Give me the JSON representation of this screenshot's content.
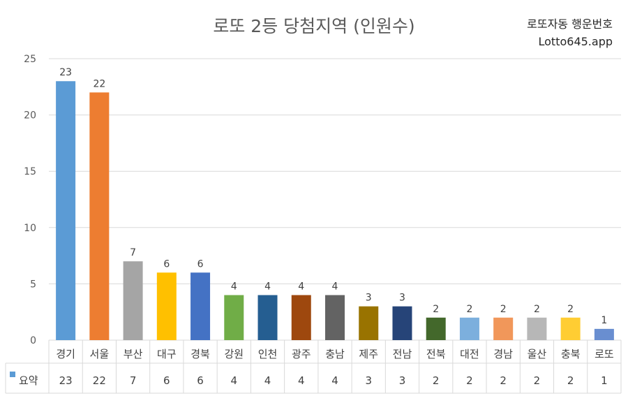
{
  "watermark": {
    "line1": "로또자동 행운번호",
    "line2": "Lotto645.app"
  },
  "chart_data": {
    "type": "bar",
    "title": "로또 2등 당첨지역 (인원수)",
    "xlabel": "",
    "ylabel": "",
    "ylim": [
      0,
      25
    ],
    "yticks": [
      0,
      5,
      10,
      15,
      20,
      25
    ],
    "grid": true,
    "legend_position": "data-table",
    "categories": [
      "경기",
      "서울",
      "부산",
      "대구",
      "경북",
      "강원",
      "인천",
      "광주",
      "충남",
      "제주",
      "전남",
      "전북",
      "대전",
      "경남",
      "울산",
      "충북",
      "로또"
    ],
    "series": [
      {
        "name": "요약",
        "values": [
          23,
          22,
          7,
          6,
          6,
          4,
          4,
          4,
          4,
          3,
          3,
          2,
          2,
          2,
          2,
          2,
          1
        ],
        "colors": [
          "#5B9BD5",
          "#ED7D31",
          "#A5A5A5",
          "#FFC000",
          "#4472C4",
          "#70AD47",
          "#255E91",
          "#9E480E",
          "#636363",
          "#997300",
          "#264478",
          "#43682B",
          "#7CAFDD",
          "#F1975A",
          "#B7B7B7",
          "#FFCD33",
          "#698ED0"
        ]
      }
    ],
    "legend_color": "#5B9BD5"
  }
}
